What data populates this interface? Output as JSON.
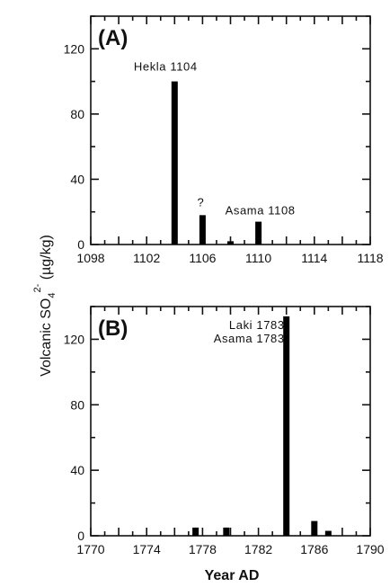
{
  "chart_data": [
    {
      "type": "bar",
      "panel_label": "(A)",
      "xlim": [
        1098,
        1118
      ],
      "ylim": [
        0,
        140
      ],
      "xticks": [
        1098,
        1102,
        1106,
        1110,
        1114,
        1118
      ],
      "yticks": [
        0,
        40,
        80,
        120
      ],
      "x": [
        1104,
        1106,
        1108,
        1110
      ],
      "values": [
        100,
        18,
        2,
        14
      ],
      "annotations": [
        {
          "text": "Hekla 1104",
          "x": 1104,
          "y": 100
        },
        {
          "text": "?",
          "x": 1106,
          "y": 18
        },
        {
          "text": "Asama 1108",
          "x": 1110,
          "y": 14
        }
      ]
    },
    {
      "type": "bar",
      "panel_label": "(B)",
      "xlim": [
        1770,
        1790
      ],
      "ylim": [
        0,
        140
      ],
      "xticks": [
        1770,
        1774,
        1778,
        1782,
        1786,
        1790
      ],
      "yticks": [
        0,
        40,
        80,
        120
      ],
      "x": [
        1777.5,
        1779.7,
        1784,
        1786,
        1787
      ],
      "values": [
        5,
        5,
        134,
        9,
        3
      ],
      "annotations": [
        {
          "text": "Laki 1783",
          "x": 1784,
          "y": 134,
          "line": 0
        },
        {
          "text": "Asama 1783",
          "x": 1784,
          "y": 134,
          "line": 1
        }
      ]
    }
  ],
  "ylabel": "Volcanic SO₄²⁻ (µg/kg)",
  "ylabel_main": "Volcanic SO",
  "ylabel_sub": "4",
  "ylabel_sup": "2-",
  "ylabel_units": " (µg/kg)",
  "xlabel": "Year AD"
}
